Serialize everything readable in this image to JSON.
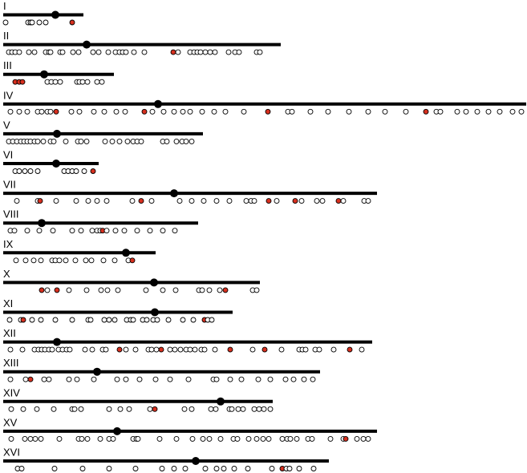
{
  "colors": {
    "line": "#000000",
    "centromere": "#000000",
    "marker_stroke": "#000000",
    "marker_fill": "#ffffff",
    "highlight_fill": "#d7301f"
  },
  "chromosomes": [
    {
      "label": "I",
      "length": 100,
      "centromere": 65,
      "markers": [
        3,
        31,
        34,
        36,
        45,
        53,
        86
      ],
      "highlights": [
        86
      ]
    },
    {
      "label": "II",
      "length": 346,
      "centromere": 104,
      "markers": [
        7,
        11,
        15,
        20,
        32,
        39,
        53,
        57,
        59,
        71,
        74,
        87,
        94,
        112,
        119,
        131,
        140,
        145,
        149,
        153,
        163,
        176,
        212,
        218,
        233,
        238,
        242,
        246,
        252,
        258,
        264,
        281,
        289,
        294,
        316,
        320
      ],
      "highlights": [
        212
      ]
    },
    {
      "label": "III",
      "length": 138,
      "centromere": 51,
      "markers": [
        15,
        20,
        24,
        55,
        60,
        65,
        71,
        92,
        95,
        99,
        105,
        117,
        123
      ],
      "highlights": [
        15,
        20,
        24
      ]
    },
    {
      "label": "IV",
      "length": 652,
      "centromere": 193,
      "markers": [
        9,
        20,
        30,
        43,
        48,
        55,
        59,
        66,
        85,
        95,
        113,
        126,
        141,
        152,
        176,
        186,
        200,
        213,
        224,
        233,
        248,
        263,
        277,
        300,
        330,
        355,
        360,
        383,
        405,
        431,
        455,
        476,
        502,
        527,
        540,
        545,
        566,
        577,
        591,
        605,
        619,
        635,
        646
      ],
      "highlights": [
        66,
        176,
        330,
        527
      ]
    },
    {
      "label": "V",
      "length": 249,
      "centromere": 67,
      "markers": [
        7,
        12,
        17,
        22,
        26,
        30,
        34,
        39,
        43,
        50,
        59,
        63,
        78,
        93,
        97,
        104,
        127,
        136,
        145,
        155,
        162,
        167,
        172,
        199,
        204,
        216,
        223,
        228,
        235
      ],
      "highlights": []
    },
    {
      "label": "VI",
      "length": 119,
      "centromere": 66,
      "markers": [
        15,
        20,
        27,
        34,
        43,
        76,
        81,
        86,
        91,
        101,
        112
      ],
      "highlights": [
        112
      ]
    },
    {
      "label": "VII",
      "length": 466,
      "centromere": 213,
      "markers": [
        17,
        43,
        46,
        66,
        91,
        106,
        117,
        129,
        161,
        172,
        185,
        220,
        235,
        250,
        266,
        282,
        303,
        309,
        313,
        331,
        341,
        364,
        372,
        391,
        398,
        418,
        424,
        450,
        455
      ],
      "highlights": [
        46,
        172,
        331,
        364,
        418
      ]
    },
    {
      "label": "VIII",
      "length": 243,
      "centromere": 48,
      "markers": [
        9,
        14,
        30,
        45,
        62,
        86,
        97,
        111,
        117,
        121,
        124,
        129,
        140,
        151,
        167,
        183,
        199,
        214
      ],
      "highlights": [
        124
      ]
    },
    {
      "label": "IX",
      "length": 190,
      "centromere": 153,
      "markers": [
        16,
        28,
        38,
        47,
        61,
        65,
        70,
        78,
        90,
        103,
        110,
        125,
        139,
        156,
        161
      ],
      "highlights": [
        161
      ]
    },
    {
      "label": "X",
      "length": 320,
      "centromere": 188,
      "markers": [
        48,
        55,
        67,
        82,
        104,
        122,
        130,
        143,
        178,
        199,
        215,
        244,
        248,
        257,
        270,
        277,
        311,
        316
      ],
      "highlights": [
        48,
        67,
        277
      ]
    },
    {
      "label": "XI",
      "length": 286,
      "centromere": 189,
      "markers": [
        8,
        22,
        25,
        36,
        47,
        65,
        86,
        106,
        109,
        126,
        132,
        139,
        154,
        159,
        162,
        174,
        179,
        187,
        192,
        206,
        224,
        237,
        251,
        255,
        260
      ],
      "highlights": [
        25,
        251
      ]
    },
    {
      "label": "XII",
      "length": 460,
      "centromere": 67,
      "markers": [
        9,
        24,
        39,
        44,
        48,
        52,
        57,
        61,
        69,
        74,
        79,
        83,
        102,
        111,
        124,
        128,
        145,
        153,
        165,
        181,
        185,
        191,
        197,
        208,
        214,
        221,
        228,
        233,
        239,
        247,
        251,
        264,
        283,
        311,
        326,
        347,
        369,
        373,
        377,
        389,
        394,
        412,
        432,
        447
      ],
      "highlights": [
        145,
        197,
        283,
        326,
        432
      ]
    },
    {
      "label": "XIII",
      "length": 395,
      "centromere": 117,
      "markers": [
        9,
        28,
        34,
        51,
        57,
        82,
        92,
        113,
        142,
        153,
        170,
        190,
        208,
        231,
        262,
        266,
        283,
        297,
        318,
        333,
        352,
        362,
        375,
        386
      ],
      "highlights": [
        34
      ]
    },
    {
      "label": "XIV",
      "length": 336,
      "centromere": 271,
      "markers": [
        10,
        25,
        42,
        63,
        86,
        89,
        97,
        132,
        146,
        157,
        183,
        189,
        226,
        235,
        259,
        265,
        282,
        285,
        293,
        299,
        313,
        319,
        325,
        333
      ],
      "highlights": [
        189
      ]
    },
    {
      "label": "XV",
      "length": 466,
      "centromere": 142,
      "markers": [
        10,
        27,
        34,
        40,
        47,
        70,
        94,
        98,
        105,
        121,
        132,
        137,
        162,
        166,
        168,
        195,
        216,
        236,
        249,
        257,
        271,
        287,
        292,
        306,
        316,
        324,
        331,
        348,
        354,
        358,
        366,
        380,
        385,
        408,
        424,
        427,
        441,
        449,
        455
      ],
      "highlights": [
        427
      ]
    },
    {
      "label": "XVI",
      "length": 406,
      "centromere": 240,
      "markers": [
        18,
        23,
        64,
        99,
        132,
        165,
        198,
        213,
        227,
        252,
        266,
        275,
        288,
        305,
        335,
        348,
        353,
        357,
        369,
        387
      ],
      "highlights": [
        348
      ]
    }
  ]
}
